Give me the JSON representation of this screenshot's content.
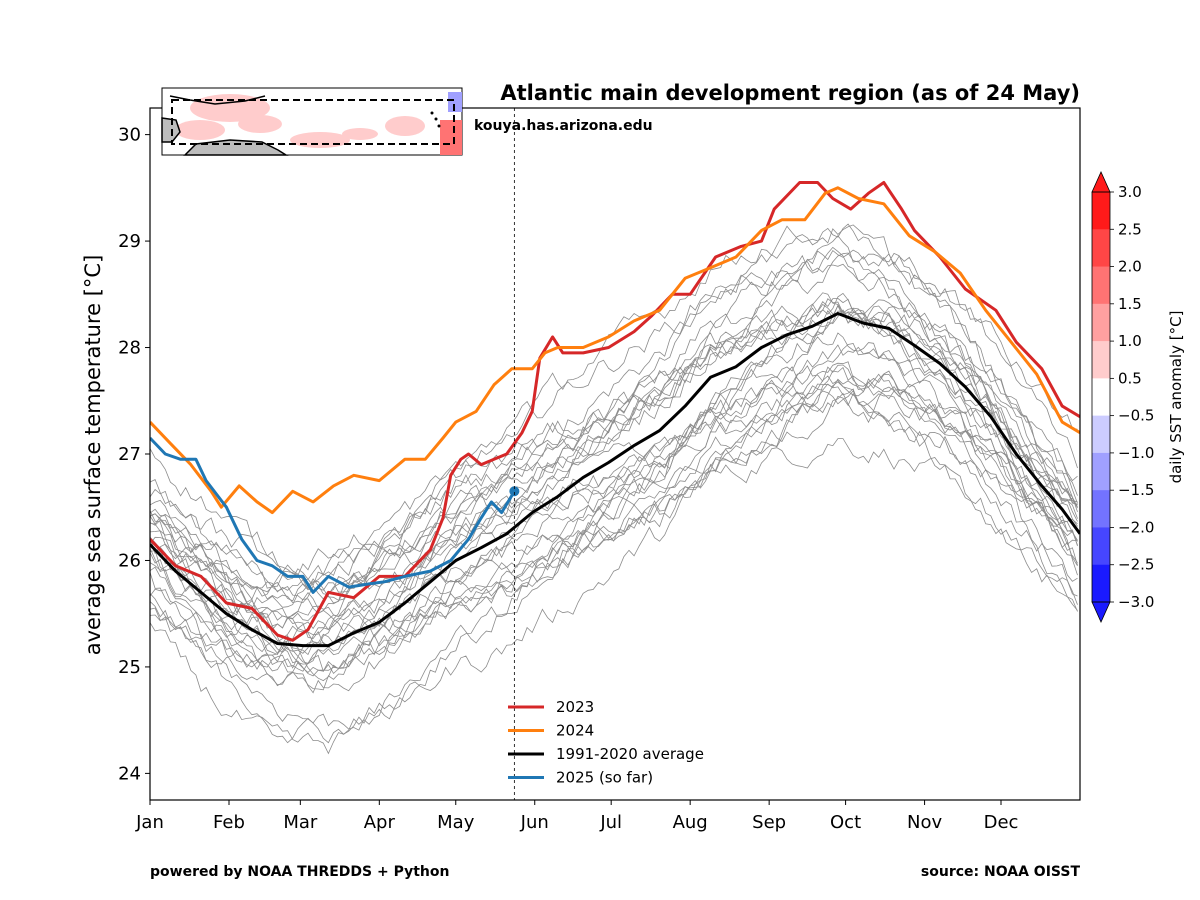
{
  "chart_data": {
    "type": "line",
    "title": "Atlantic main development region (as of 24 May)",
    "ylabel": "average sea surface temperature [°C]",
    "xlabel": "",
    "xlim": [
      0,
      365
    ],
    "ylim": [
      23.75,
      30.25
    ],
    "y_ticks": [
      24,
      25,
      26,
      27,
      28,
      29,
      30
    ],
    "x_ticks": [
      {
        "day": 0,
        "label": "Jan"
      },
      {
        "day": 31,
        "label": "Feb"
      },
      {
        "day": 59,
        "label": "Mar"
      },
      {
        "day": 90,
        "label": "Apr"
      },
      {
        "day": 120,
        "label": "May"
      },
      {
        "day": 151,
        "label": "Jun"
      },
      {
        "day": 181,
        "label": "Jul"
      },
      {
        "day": 212,
        "label": "Aug"
      },
      {
        "day": 243,
        "label": "Sep"
      },
      {
        "day": 273,
        "label": "Oct"
      },
      {
        "day": 304,
        "label": "Nov"
      },
      {
        "day": 334,
        "label": "Dec"
      }
    ],
    "current_day": 143,
    "legend_position": "lower-center",
    "grid": false,
    "series": [
      {
        "name": "2023",
        "color": "#d62728",
        "points": [
          [
            0,
            26.2
          ],
          [
            10,
            25.95
          ],
          [
            20,
            25.85
          ],
          [
            30,
            25.6
          ],
          [
            40,
            25.55
          ],
          [
            50,
            25.3
          ],
          [
            56,
            25.25
          ],
          [
            62,
            25.35
          ],
          [
            70,
            25.7
          ],
          [
            80,
            25.65
          ],
          [
            90,
            25.85
          ],
          [
            100,
            25.85
          ],
          [
            110,
            26.1
          ],
          [
            115,
            26.4
          ],
          [
            118,
            26.8
          ],
          [
            122,
            26.95
          ],
          [
            125,
            27.0
          ],
          [
            130,
            26.9
          ],
          [
            135,
            26.95
          ],
          [
            140,
            27.0
          ],
          [
            146,
            27.2
          ],
          [
            150,
            27.4
          ],
          [
            153,
            27.9
          ],
          [
            158,
            28.1
          ],
          [
            162,
            27.95
          ],
          [
            170,
            27.95
          ],
          [
            180,
            28.0
          ],
          [
            190,
            28.15
          ],
          [
            197,
            28.3
          ],
          [
            205,
            28.5
          ],
          [
            212,
            28.5
          ],
          [
            222,
            28.85
          ],
          [
            232,
            28.95
          ],
          [
            240,
            29.0
          ],
          [
            245,
            29.3
          ],
          [
            255,
            29.55
          ],
          [
            262,
            29.55
          ],
          [
            268,
            29.4
          ],
          [
            275,
            29.3
          ],
          [
            282,
            29.45
          ],
          [
            288,
            29.55
          ],
          [
            295,
            29.3
          ],
          [
            300,
            29.1
          ],
          [
            310,
            28.85
          ],
          [
            320,
            28.55
          ],
          [
            332,
            28.35
          ],
          [
            340,
            28.05
          ],
          [
            350,
            27.8
          ],
          [
            358,
            27.45
          ],
          [
            365,
            27.35
          ]
        ]
      },
      {
        "name": "2024",
        "color": "#ff7f0e",
        "points": [
          [
            0,
            27.3
          ],
          [
            8,
            27.1
          ],
          [
            16,
            26.9
          ],
          [
            24,
            26.65
          ],
          [
            28,
            26.5
          ],
          [
            35,
            26.7
          ],
          [
            42,
            26.55
          ],
          [
            48,
            26.45
          ],
          [
            56,
            26.65
          ],
          [
            64,
            26.55
          ],
          [
            72,
            26.7
          ],
          [
            80,
            26.8
          ],
          [
            90,
            26.75
          ],
          [
            100,
            26.95
          ],
          [
            108,
            26.95
          ],
          [
            115,
            27.15
          ],
          [
            120,
            27.3
          ],
          [
            128,
            27.4
          ],
          [
            135,
            27.65
          ],
          [
            142,
            27.8
          ],
          [
            150,
            27.8
          ],
          [
            155,
            27.95
          ],
          [
            160,
            28.0
          ],
          [
            170,
            28.0
          ],
          [
            180,
            28.1
          ],
          [
            190,
            28.25
          ],
          [
            200,
            28.35
          ],
          [
            210,
            28.65
          ],
          [
            220,
            28.75
          ],
          [
            230,
            28.85
          ],
          [
            240,
            29.1
          ],
          [
            248,
            29.2
          ],
          [
            257,
            29.2
          ],
          [
            265,
            29.45
          ],
          [
            270,
            29.5
          ],
          [
            278,
            29.4
          ],
          [
            288,
            29.35
          ],
          [
            298,
            29.05
          ],
          [
            308,
            28.9
          ],
          [
            318,
            28.7
          ],
          [
            328,
            28.35
          ],
          [
            338,
            28.05
          ],
          [
            348,
            27.75
          ],
          [
            358,
            27.3
          ],
          [
            365,
            27.2
          ]
        ]
      },
      {
        "name": "1991-2020 average",
        "color": "#000000",
        "points": [
          [
            0,
            26.15
          ],
          [
            10,
            25.9
          ],
          [
            20,
            25.7
          ],
          [
            30,
            25.5
          ],
          [
            40,
            25.35
          ],
          [
            50,
            25.22
          ],
          [
            60,
            25.2
          ],
          [
            70,
            25.2
          ],
          [
            80,
            25.32
          ],
          [
            90,
            25.42
          ],
          [
            100,
            25.6
          ],
          [
            110,
            25.8
          ],
          [
            120,
            26.0
          ],
          [
            130,
            26.12
          ],
          [
            140,
            26.25
          ],
          [
            150,
            26.45
          ],
          [
            160,
            26.6
          ],
          [
            170,
            26.78
          ],
          [
            180,
            26.92
          ],
          [
            190,
            27.08
          ],
          [
            200,
            27.22
          ],
          [
            210,
            27.45
          ],
          [
            220,
            27.72
          ],
          [
            230,
            27.82
          ],
          [
            240,
            28.0
          ],
          [
            250,
            28.12
          ],
          [
            260,
            28.2
          ],
          [
            270,
            28.32
          ],
          [
            280,
            28.23
          ],
          [
            290,
            28.18
          ],
          [
            300,
            28.02
          ],
          [
            310,
            27.85
          ],
          [
            320,
            27.63
          ],
          [
            330,
            27.35
          ],
          [
            340,
            27.0
          ],
          [
            350,
            26.7
          ],
          [
            358,
            26.48
          ],
          [
            365,
            26.25
          ]
        ]
      },
      {
        "name": "2025 (so far)",
        "color": "#1f77b4",
        "points": [
          [
            0,
            27.15
          ],
          [
            6,
            27.0
          ],
          [
            12,
            26.95
          ],
          [
            18,
            26.95
          ],
          [
            22,
            26.75
          ],
          [
            30,
            26.5
          ],
          [
            36,
            26.2
          ],
          [
            42,
            26.0
          ],
          [
            48,
            25.95
          ],
          [
            54,
            25.85
          ],
          [
            60,
            25.85
          ],
          [
            64,
            25.7
          ],
          [
            70,
            25.85
          ],
          [
            78,
            25.75
          ],
          [
            86,
            25.78
          ],
          [
            92,
            25.8
          ],
          [
            100,
            25.85
          ],
          [
            110,
            25.9
          ],
          [
            118,
            26.0
          ],
          [
            125,
            26.2
          ],
          [
            130,
            26.4
          ],
          [
            134,
            26.55
          ],
          [
            138,
            26.45
          ],
          [
            143,
            26.65
          ]
        ]
      }
    ],
    "colorbar": {
      "label": "daily SST anomaly [°C]",
      "ticks": [
        "3.0",
        "2.5",
        "2.0",
        "1.5",
        "1.0",
        "0.5",
        "−0.5",
        "−1.0",
        "−1.5",
        "−2.0",
        "−2.5",
        "−3.0"
      ],
      "colors": [
        "#ff1a1a",
        "#ff4646",
        "#ff7373",
        "#ffa0a0",
        "#ffcccc",
        "#ffffff",
        "#ccccff",
        "#a0a0ff",
        "#7373ff",
        "#4646ff",
        "#1a1aff"
      ]
    }
  },
  "credits": {
    "website": "kouya.has.arizona.edu",
    "powered_by": "powered by NOAA THREDDS + Python",
    "source": "source: NOAA OISST"
  },
  "colors": {
    "climatology_lines": "#8c8c8c",
    "land": "#bdbdbd"
  }
}
